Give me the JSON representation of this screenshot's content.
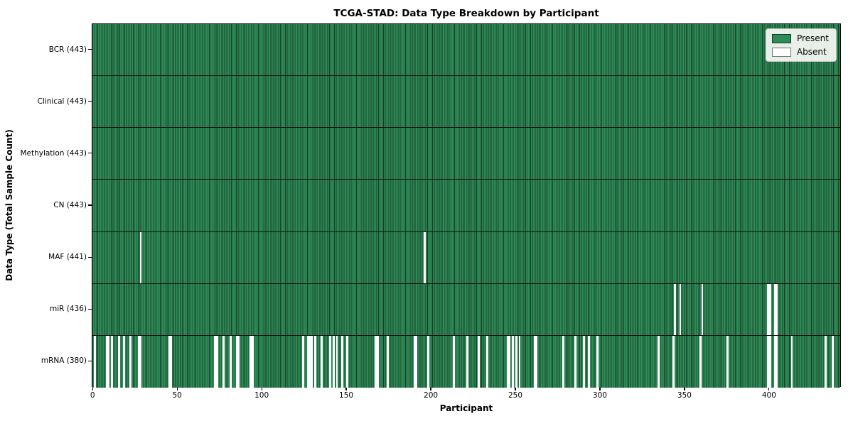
{
  "title": "TCGA-STAD: Data Type Breakdown by Participant",
  "legend": {
    "present_label": "Present",
    "absent_label": "Absent"
  },
  "colors": {
    "present": "#2e8b57",
    "absent": "#ffffff",
    "cell_edge": "rgba(0,0,0,0.55)",
    "row_edge": "#101010",
    "legend_border": "#cccccc"
  },
  "chart_data": {
    "type": "heatmap",
    "title": "TCGA-STAD: Data Type Breakdown by Participant",
    "xlabel": "Participant",
    "ylabel": "Data Type (Total Sample Count)",
    "n_participants": 443,
    "x_ticks": [
      0,
      50,
      100,
      150,
      200,
      250,
      300,
      350,
      400
    ],
    "xlim": [
      0,
      443
    ],
    "grid": false,
    "legend_entries": [
      "Present",
      "Absent"
    ],
    "legend_position": "upper right",
    "rows": [
      {
        "label": "BCR (443)",
        "data_type": "BCR",
        "present_count": 443,
        "absent_participants": []
      },
      {
        "label": "Clinical (443)",
        "data_type": "Clinical",
        "present_count": 443,
        "absent_participants": []
      },
      {
        "label": "Methylation (443)",
        "data_type": "Methylation",
        "present_count": 443,
        "absent_participants": []
      },
      {
        "label": "CN (443)",
        "data_type": "CN",
        "present_count": 443,
        "absent_participants": []
      },
      {
        "label": "MAF (441)",
        "data_type": "MAF",
        "present_count": 441,
        "absent_participants": [
          28,
          196
        ]
      },
      {
        "label": "miR (436)",
        "data_type": "miR",
        "present_count": 436,
        "absent_participants": [
          344,
          347,
          360,
          399,
          400,
          403,
          404
        ]
      },
      {
        "label": "mRNA (380)",
        "data_type": "mRNA",
        "present_count": 380,
        "absent_participants": [
          1,
          8,
          9,
          11,
          15,
          18,
          22,
          27,
          28,
          45,
          46,
          72,
          73,
          77,
          81,
          85,
          86,
          93,
          94,
          124,
          127,
          128,
          129,
          131,
          135,
          140,
          142,
          144,
          147,
          150,
          167,
          168,
          174,
          190,
          191,
          198,
          213,
          221,
          228,
          233,
          245,
          246,
          248,
          250,
          252,
          261,
          262,
          278,
          285,
          290,
          293,
          298,
          334,
          343,
          359,
          375,
          399,
          400,
          403,
          404,
          413,
          433,
          437
        ]
      }
    ]
  }
}
